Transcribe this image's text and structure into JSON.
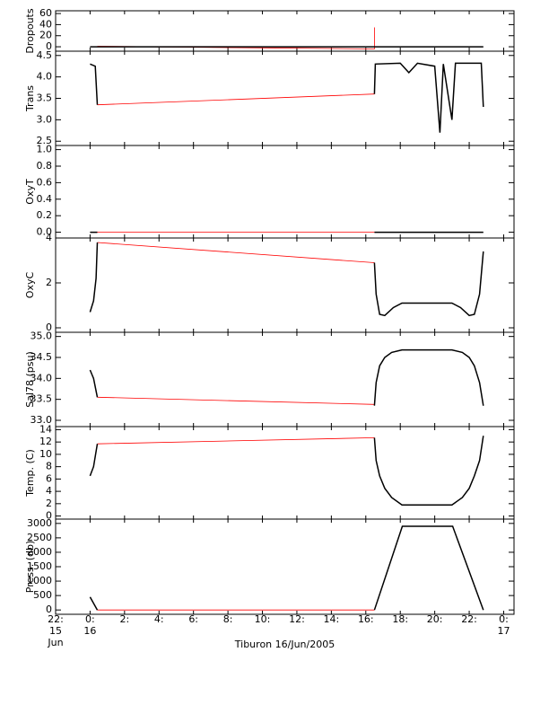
{
  "chart_data": [
    {
      "type": "line",
      "ylabel": "Dropouts",
      "ylim": [
        -8,
        65
      ],
      "yticks": [
        0,
        20,
        40,
        60
      ],
      "x": [
        0,
        0.42,
        16.5,
        22.82
      ],
      "values": [
        0,
        0,
        0,
        0
      ],
      "color": "#000000",
      "gap_x": [
        0.42,
        16.5,
        16.5,
        16.5
      ],
      "gap_values": [
        1,
        -4,
        35,
        0
      ],
      "gap_color": "#ff0000"
    },
    {
      "type": "line",
      "ylabel": "Trans",
      "ylim": [
        2.4,
        4.6
      ],
      "yticks": [
        2.5,
        {
          "value": 3,
          "label": "3.0"
        },
        3.5,
        {
          "value": 4,
          "label": "4.0"
        },
        4.5
      ],
      "x": [
        0,
        0.3,
        0.42,
        null,
        16.5,
        16.55,
        18,
        18.5,
        19,
        20,
        20.3,
        20.5,
        21,
        21.2,
        22.7,
        22.82
      ],
      "values": [
        4.3,
        4.25,
        3.35,
        null,
        3.6,
        4.3,
        4.32,
        4.1,
        4.32,
        4.25,
        2.7,
        4.3,
        3.0,
        4.32,
        4.32,
        3.3
      ],
      "color": "#000000",
      "gap_x": [
        0.42,
        16.5
      ],
      "gap_values": [
        3.35,
        3.6
      ],
      "gap_color": "#ff0000"
    },
    {
      "type": "line",
      "ylabel": "OxyT",
      "ylim": [
        -0.07,
        1.05
      ],
      "yticks": [
        {
          "value": 0,
          "label": "0.0"
        },
        0.2,
        0.4,
        0.6,
        0.8,
        {
          "value": 1,
          "label": "1.0"
        }
      ],
      "x": [
        0,
        0.42,
        null,
        16.5,
        22.82
      ],
      "values": [
        0,
        0,
        null,
        0,
        0
      ],
      "color": "#000000",
      "gap_x": [
        0.42,
        16.5
      ],
      "gap_values": [
        0,
        0
      ],
      "gap_color": "#ff0000"
    },
    {
      "type": "line",
      "ylabel": "OxyC",
      "ylim": [
        -0.2,
        4.0
      ],
      "yticks": [
        0,
        2,
        4
      ],
      "x": [
        0,
        0.2,
        0.35,
        0.42,
        null,
        16.5,
        16.6,
        16.8,
        17.1,
        17.6,
        18.1,
        21,
        21.5,
        22,
        22.3,
        22.6,
        22.82
      ],
      "values": [
        0.7,
        1.2,
        2.2,
        3.8,
        null,
        2.9,
        1.5,
        0.6,
        0.55,
        0.9,
        1.1,
        1.1,
        0.9,
        0.55,
        0.6,
        1.5,
        3.4
      ],
      "color": "#000000",
      "gap_x": [
        0.42,
        16.5
      ],
      "gap_values": [
        3.8,
        2.9
      ],
      "gap_color": "#ff0000"
    },
    {
      "type": "line",
      "ylabel": "Sal78 (psu)",
      "ylim": [
        32.85,
        35.1
      ],
      "yticks": [
        {
          "value": 33,
          "label": "33.0"
        },
        33.5,
        {
          "value": 34,
          "label": "34.0"
        },
        34.5,
        {
          "value": 35,
          "label": "35.0"
        }
      ],
      "x": [
        0,
        0.2,
        0.42,
        null,
        16.5,
        16.6,
        16.8,
        17.1,
        17.5,
        18.1,
        21,
        21.6,
        22,
        22.3,
        22.6,
        22.82
      ],
      "values": [
        34.2,
        34.0,
        33.55,
        null,
        33.35,
        33.9,
        34.3,
        34.5,
        34.62,
        34.68,
        34.68,
        34.62,
        34.5,
        34.3,
        33.9,
        33.35
      ],
      "color": "#000000",
      "gap_x": [
        0.42,
        16.5
      ],
      "gap_values": [
        33.55,
        33.38
      ],
      "gap_color": "#ff0000"
    },
    {
      "type": "line",
      "ylabel": "Temp. (C)",
      "ylim": [
        -0.5,
        14.5
      ],
      "yticks": [
        0,
        2,
        4,
        6,
        8,
        10,
        12,
        14
      ],
      "x": [
        0,
        0.2,
        0.42,
        null,
        16.5,
        16.6,
        16.8,
        17.1,
        17.5,
        18.1,
        21,
        21.6,
        22,
        22.3,
        22.6,
        22.82
      ],
      "values": [
        6.5,
        8,
        11.7,
        null,
        12.7,
        9,
        6.5,
        4.5,
        3,
        1.8,
        1.8,
        3,
        4.5,
        6.5,
        9,
        13
      ],
      "color": "#000000",
      "gap_x": [
        0.42,
        16.5
      ],
      "gap_values": [
        11.7,
        12.7
      ],
      "gap_color": "#ff0000"
    },
    {
      "type": "line",
      "ylabel": "Press. (db)",
      "ylim": [
        -150,
        3150
      ],
      "yticks": [
        0,
        500,
        1000,
        1500,
        2000,
        2500,
        3000
      ],
      "x": [
        0,
        0.42,
        null,
        16.5,
        18.12,
        21.04,
        22.82
      ],
      "values": [
        450,
        0,
        null,
        0,
        2900,
        2900,
        0
      ],
      "color": "#000000",
      "gap_x": [
        0.42,
        16.5
      ],
      "gap_values": [
        0,
        0
      ],
      "gap_color": "#ff0000"
    }
  ],
  "x_axis": {
    "xlim": [
      -2,
      24.6
    ],
    "xticks": [
      {
        "value": -2,
        "label": "22:"
      },
      {
        "value": 0,
        "label": "0:"
      },
      {
        "value": 2,
        "label": "2:"
      },
      {
        "value": 4,
        "label": "4:"
      },
      {
        "value": 6,
        "label": "6:"
      },
      {
        "value": 8,
        "label": "8:"
      },
      {
        "value": 10,
        "label": "10:"
      },
      {
        "value": 12,
        "label": "12:"
      },
      {
        "value": 14,
        "label": "14:"
      },
      {
        "value": 16,
        "label": "16:"
      },
      {
        "value": 18,
        "label": "18:"
      },
      {
        "value": 20,
        "label": "20:"
      },
      {
        "value": 22,
        "label": "22:"
      },
      {
        "value": 24,
        "label": "0:"
      }
    ],
    "xtick_dates": [
      {
        "value": -2,
        "lines": [
          "15",
          "Jun"
        ]
      },
      {
        "value": 0,
        "lines": [
          "16"
        ]
      },
      {
        "value": 24,
        "lines": [
          "17"
        ]
      }
    ],
    "xlabel": "Tiburon 16/Jun/2005"
  }
}
